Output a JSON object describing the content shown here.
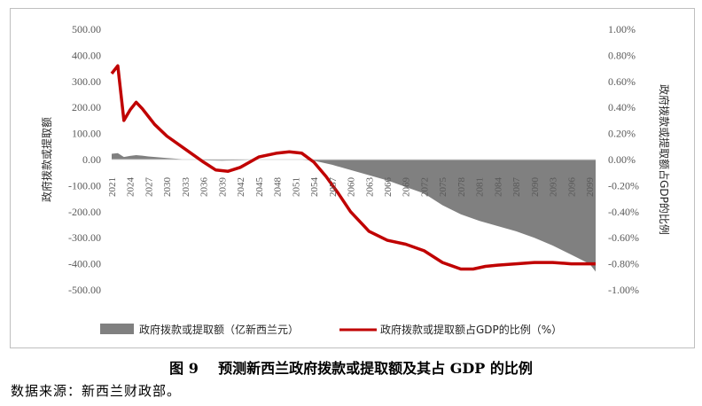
{
  "chart_data": {
    "type": "area+line",
    "y_left": {
      "title": "政府拨款或提取额",
      "min": -500,
      "max": 500,
      "step": 100,
      "ticks": [
        "500.00",
        "400.00",
        "300.00",
        "200.00",
        "100.00",
        "0.00",
        "-100.00",
        "-200.00",
        "-300.00",
        "-400.00",
        "-500.00"
      ]
    },
    "y_right": {
      "title": "政府拨款或提取额占GDP的比例",
      "min": -1.0,
      "max": 1.0,
      "step": 0.2,
      "ticks": [
        "1.00%",
        "0.80%",
        "0.60%",
        "0.40%",
        "0.20%",
        "0.00%",
        "-0.20%",
        "-0.40%",
        "-0.60%",
        "-0.80%",
        "-1.00%"
      ]
    },
    "x_ticks": [
      "2021",
      "2024",
      "2027",
      "2030",
      "2033",
      "2036",
      "2039",
      "2042",
      "2045",
      "2048",
      "2051",
      "2054",
      "2057",
      "2060",
      "2063",
      "2066",
      "2069",
      "2072",
      "2075",
      "2078",
      "2081",
      "2084",
      "2087",
      "2090",
      "2093",
      "2096",
      "2099"
    ],
    "series": [
      {
        "name": "政府拨款或提取额（亿新西兰元）",
        "type": "area",
        "axis": "left",
        "color": "#808080",
        "x": [
          2021,
          2022,
          2023,
          2024,
          2025,
          2026,
          2027,
          2030,
          2033,
          2036,
          2039,
          2042,
          2045,
          2048,
          2051,
          2054,
          2057,
          2060,
          2063,
          2066,
          2069,
          2072,
          2075,
          2078,
          2081,
          2084,
          2087,
          2090,
          2093,
          2096,
          2099,
          2100
        ],
        "y": [
          22,
          25,
          10,
          14,
          17,
          15,
          12,
          6,
          1,
          -3,
          -4,
          -3,
          -1,
          0,
          0,
          -4,
          -20,
          -40,
          -60,
          -80,
          -105,
          -130,
          -175,
          -210,
          -235,
          -255,
          -275,
          -300,
          -330,
          -365,
          -400,
          -430
        ]
      },
      {
        "name": "政府拨款或提取额占GDP的比例（%）",
        "type": "line",
        "axis": "right",
        "color": "#c00000",
        "x": [
          2021,
          2022,
          2023,
          2024,
          2025,
          2026,
          2027,
          2028,
          2030,
          2033,
          2036,
          2038,
          2040,
          2042,
          2045,
          2048,
          2050,
          2052,
          2054,
          2056,
          2058,
          2060,
          2063,
          2066,
          2069,
          2072,
          2075,
          2078,
          2080,
          2082,
          2084,
          2087,
          2090,
          2093,
          2096,
          2099,
          2100
        ],
        "y": [
          0.66,
          0.72,
          0.3,
          0.38,
          0.44,
          0.39,
          0.33,
          0.27,
          0.18,
          0.08,
          -0.02,
          -0.08,
          -0.09,
          -0.06,
          0.02,
          0.05,
          0.06,
          0.05,
          -0.02,
          -0.13,
          -0.26,
          -0.4,
          -0.55,
          -0.62,
          -0.65,
          -0.7,
          -0.79,
          -0.84,
          -0.84,
          -0.82,
          -0.81,
          -0.8,
          -0.79,
          -0.79,
          -0.8,
          -0.8,
          -0.8
        ]
      }
    ],
    "x_min": 2021,
    "x_max": 2100
  },
  "caption": "图 9    预测新西兰政府拨款或提取额及其占 GDP 的比例",
  "source": "数据来源：新西兰财政部。"
}
